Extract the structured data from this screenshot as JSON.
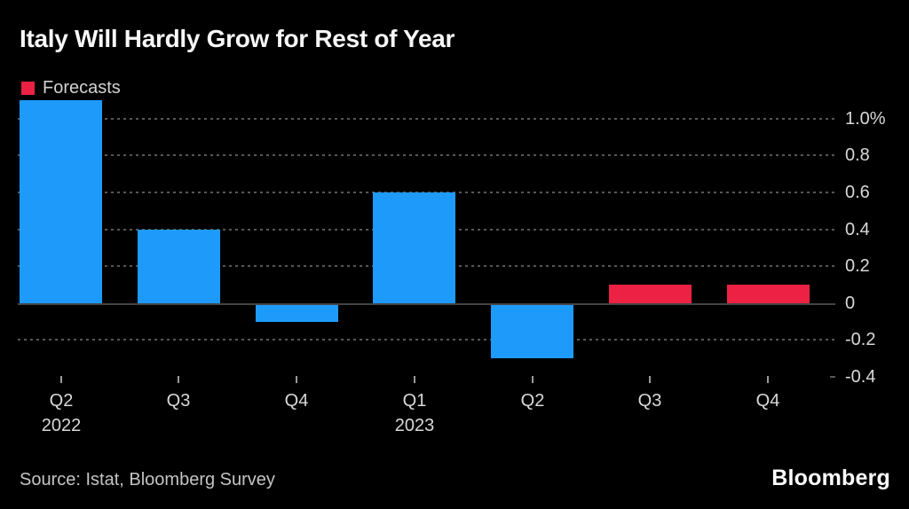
{
  "title": "Italy Will Hardly Grow for Rest of Year",
  "legend": {
    "label": "Forecasts",
    "color": "#ed2144"
  },
  "footer": {
    "source": "Source: Istat, Bloomberg Survey",
    "brand": "Bloomberg"
  },
  "colors": {
    "background": "#000000",
    "actual_bar": "#1e9bfa",
    "forecast_bar": "#ed2144",
    "gridline": "#575757",
    "zero_line": "#454545",
    "axis_tick": "#9a9a9a",
    "title_text": "#f7f7f7",
    "label_text": "#d8d8d8",
    "source_text": "#c4c4c4"
  },
  "chart_data": {
    "type": "bar",
    "title": "Italy Will Hardly Grow for Rest of Year",
    "unit": "%",
    "categories": [
      "Q2",
      "Q3",
      "Q4",
      "Q1",
      "Q2",
      "Q3",
      "Q4"
    ],
    "year_labels": [
      {
        "index": 0,
        "label": "2022"
      },
      {
        "index": 3,
        "label": "2023"
      }
    ],
    "series": [
      {
        "name": "Actual",
        "color": "#1e9bfa",
        "values": [
          1.1,
          0.4,
          -0.1,
          0.6,
          -0.3,
          null,
          null
        ]
      },
      {
        "name": "Forecasts",
        "color": "#ed2144",
        "values": [
          null,
          null,
          null,
          null,
          null,
          0.1,
          0.1
        ]
      }
    ],
    "y_ticks": [
      {
        "value": 1.0,
        "label": "1.0%"
      },
      {
        "value": 0.8,
        "label": "0.8"
      },
      {
        "value": 0.6,
        "label": "0.6"
      },
      {
        "value": 0.4,
        "label": "0.4"
      },
      {
        "value": 0.2,
        "label": "0.2"
      },
      {
        "value": 0,
        "label": "0"
      },
      {
        "value": -0.2,
        "label": "-0.2"
      },
      {
        "value": -0.4,
        "label": "-0.4"
      }
    ],
    "ylim": [
      -0.4,
      1.1
    ],
    "grid": "dashed-horizontal",
    "legend_position": "top-left",
    "axis_side": "right"
  }
}
